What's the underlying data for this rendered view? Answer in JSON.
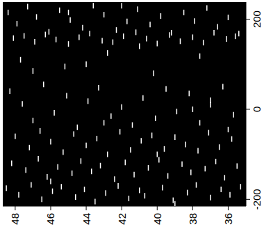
{
  "chart_data": {
    "type": "scatter",
    "color": "#ffffff",
    "marker": "vline",
    "grid": false,
    "xlim": [
      35,
      48.7
    ],
    "xticks": [
      36,
      38,
      40,
      42,
      44,
      46,
      48
    ],
    "ylim": [
      -215,
      238
    ],
    "yticks": [
      -200,
      0,
      200
    ],
    "x": [
      48.4,
      47.9,
      47.3,
      46.8,
      46.1,
      45.5,
      44.9,
      44.2,
      43.6,
      43.0,
      42.3,
      41.7,
      41.1,
      40.4,
      39.8,
      39.2,
      38.5,
      37.9,
      37.2,
      36.6,
      36.0,
      35.4,
      48.1,
      47.5,
      46.9,
      46.3,
      45.7,
      45.0,
      44.4,
      43.8,
      43.1,
      42.5,
      41.9,
      41.2,
      40.6,
      40.0,
      39.3,
      38.7,
      38.0,
      37.4,
      36.8,
      36.1,
      35.6,
      47.7,
      45.2,
      42.8,
      40.2,
      37.6,
      48.3,
      47.6,
      47.0,
      46.4,
      45.8,
      45.1,
      44.5,
      43.9,
      43.3,
      42.6,
      42.0,
      41.4,
      40.8,
      40.1,
      39.5,
      38.9,
      38.2,
      37.6,
      37.0,
      36.3,
      35.7,
      48.0,
      47.2,
      46.6,
      46.0,
      45.3,
      44.7,
      44.0,
      43.4,
      42.8,
      42.1,
      41.5,
      40.9,
      40.3,
      39.6,
      39.0,
      38.4,
      37.7,
      37.1,
      36.5,
      35.8,
      48.2,
      47.4,
      46.7,
      46.2,
      45.6,
      44.8,
      44.3,
      43.7,
      43.2,
      42.4,
      41.8,
      41.3,
      40.5,
      39.9,
      39.4,
      38.6,
      38.1,
      37.3,
      36.7,
      36.2,
      35.5,
      48.5,
      47.8,
      47.1,
      46.5,
      45.9,
      45.4,
      44.6,
      44.1,
      43.5,
      42.9,
      42.2,
      41.6,
      41.0,
      40.7,
      39.7,
      39.1,
      38.3,
      37.8,
      37.0,
      36.4,
      35.9,
      35.3,
      47.0,
      45.0,
      43.0,
      41.0,
      39.0,
      37.0,
      46.0,
      44.0,
      42.0,
      40.0,
      38.0,
      36.0
    ],
    "values": [
      215,
      190,
      228,
      205,
      172,
      220,
      198,
      181,
      230,
      210,
      176,
      195,
      222,
      188,
      207,
      170,
      215,
      196,
      225,
      183,
      204,
      168,
      158,
      163,
      150,
      166,
      155,
      145,
      160,
      168,
      152,
      149,
      162,
      171,
      157,
      146,
      165,
      151,
      160,
      148,
      170,
      156,
      162,
      110,
      95,
      125,
      80,
      118,
      40,
      12,
      -25,
      55,
      -8,
      30,
      -40,
      18,
      48,
      -15,
      5,
      -35,
      25,
      -20,
      45,
      -5,
      35,
      -30,
      10,
      50,
      -12,
      -60,
      -85,
      -48,
      -72,
      -95,
      -55,
      -80,
      -65,
      -100,
      -50,
      -90,
      -70,
      -58,
      -88,
      -62,
      -78,
      -92,
      -52,
      -84,
      -66,
      -120,
      -135,
      -110,
      -150,
      -128,
      -142,
      -115,
      -138,
      -125,
      -155,
      -118,
      -145,
      -130,
      -112,
      -148,
      -122,
      -140,
      -132,
      -116,
      -152,
      -126,
      -175,
      -190,
      -168,
      -200,
      -182,
      -172,
      -195,
      -178,
      -205,
      -186,
      -170,
      -198,
      -180,
      -192,
      -174,
      -202,
      -185,
      -168,
      -196,
      -178,
      -190,
      -172,
      85,
      215,
      -30,
      140,
      -210,
      20,
      -160,
      100,
      230,
      -100,
      0,
      -45
    ]
  }
}
